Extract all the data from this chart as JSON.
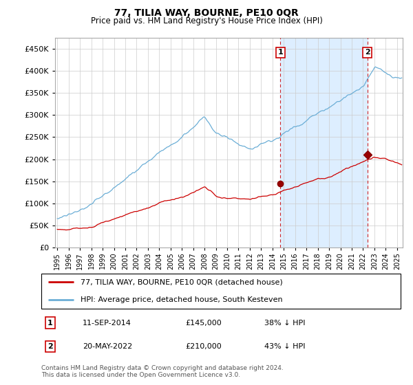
{
  "title": "77, TILIA WAY, BOURNE, PE10 0QR",
  "subtitle": "Price paid vs. HM Land Registry's House Price Index (HPI)",
  "legend_line1": "77, TILIA WAY, BOURNE, PE10 0QR (detached house)",
  "legend_line2": "HPI: Average price, detached house, South Kesteven",
  "annotation1_date": "11-SEP-2014",
  "annotation1_price": "£145,000",
  "annotation1_hpi": "38% ↓ HPI",
  "annotation2_date": "20-MAY-2022",
  "annotation2_price": "£210,000",
  "annotation2_hpi": "43% ↓ HPI",
  "footnote": "Contains HM Land Registry data © Crown copyright and database right 2024.\nThis data is licensed under the Open Government Licence v3.0.",
  "hpi_color": "#6baed6",
  "price_color": "#cc0000",
  "shade_color": "#ddeeff",
  "ylim": [
    0,
    475000
  ],
  "yticks": [
    0,
    50000,
    100000,
    150000,
    200000,
    250000,
    300000,
    350000,
    400000,
    450000
  ],
  "t1_x": 2014.708,
  "t1_y": 145000,
  "t2_x": 2022.375,
  "t2_y": 210000,
  "xlim_left": 1994.8,
  "xlim_right": 2025.5
}
